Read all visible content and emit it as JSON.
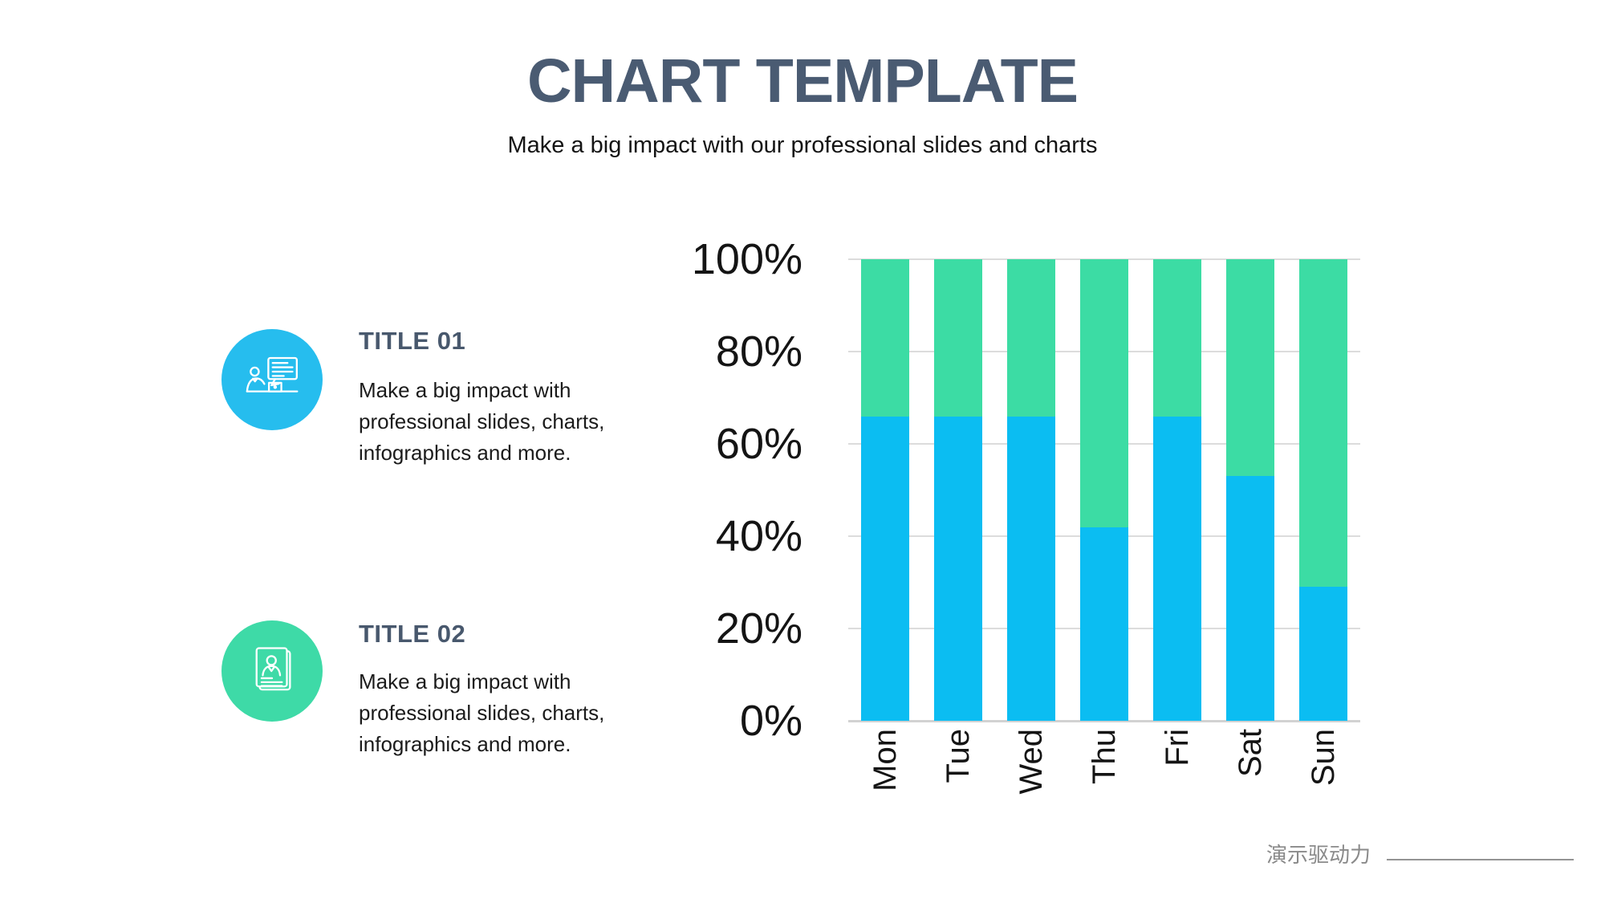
{
  "slide": {
    "title": "CHART TEMPLATE",
    "subtitle": "Make a big impact with our professional slides and charts"
  },
  "features": [
    {
      "title": "TITLE 01",
      "description": "Make a big impact with professional slides, charts, infographics and more.",
      "accent": "#26BDEE",
      "icon": "person-presenting-icon"
    },
    {
      "title": "TITLE 02",
      "description": "Make a big impact with professional slides, charts, infographics and more.",
      "accent": "#3EDAA7",
      "icon": "resume-card-icon"
    }
  ],
  "chart_data": {
    "type": "bar",
    "stacked": true,
    "categories": [
      "Mon",
      "Tue",
      "Wed",
      "Thu",
      "Fri",
      "Sat",
      "Sun"
    ],
    "series": [
      {
        "name": "bottom-segment",
        "color": "#0BBDF2",
        "values": [
          66,
          66,
          66,
          42,
          66,
          53,
          29
        ]
      },
      {
        "name": "top-segment",
        "color": "#3CDCA4",
        "values": [
          34,
          34,
          34,
          58,
          34,
          47,
          71
        ]
      }
    ],
    "ytick_labels": [
      "0%",
      "20%",
      "40%",
      "60%",
      "80%",
      "100%"
    ],
    "ylim": [
      0,
      100
    ],
    "grid": true,
    "legend": "none",
    "xlabel": "",
    "ylabel": ""
  },
  "footer": {
    "brand": "演示驱动力"
  },
  "colors": {
    "title_slate": "#4A5B72",
    "bar_blue": "#0BBDF2",
    "bar_green": "#3CDCA4",
    "gridline": "#DCDCDC",
    "footer_gray": "#8A8A8A"
  }
}
